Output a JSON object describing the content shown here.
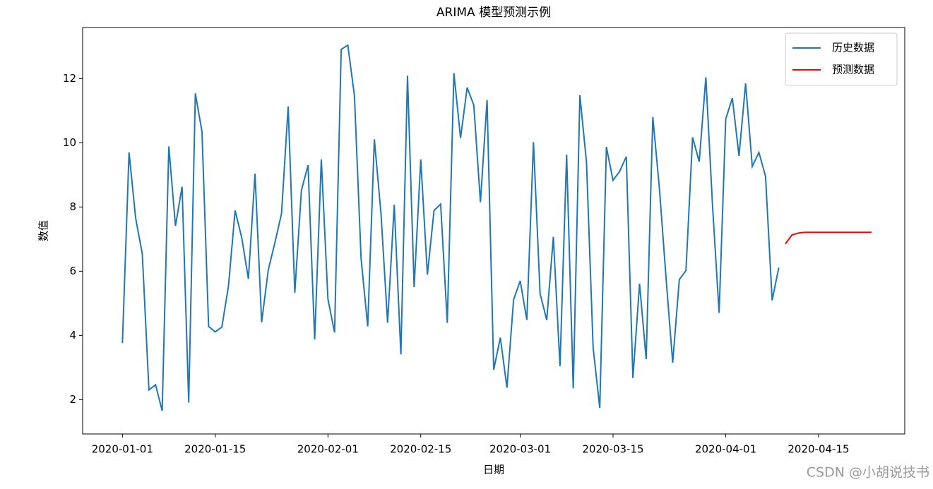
{
  "chart_data": {
    "type": "line",
    "title": "ARIMA 模型预测示例",
    "xlabel": "日期",
    "ylabel": "数值",
    "series": [
      {
        "name": "历史数据",
        "color": "#1f77b4",
        "x": [
          "2020-01-01",
          "2020-01-02",
          "2020-01-03",
          "2020-01-04",
          "2020-01-05",
          "2020-01-06",
          "2020-01-07",
          "2020-01-08",
          "2020-01-09",
          "2020-01-10",
          "2020-01-11",
          "2020-01-12",
          "2020-01-13",
          "2020-01-14",
          "2020-01-15",
          "2020-01-16",
          "2020-01-17",
          "2020-01-18",
          "2020-01-19",
          "2020-01-20",
          "2020-01-21",
          "2020-01-22",
          "2020-01-23",
          "2020-01-24",
          "2020-01-25",
          "2020-01-26",
          "2020-01-27",
          "2020-01-28",
          "2020-01-29",
          "2020-01-30",
          "2020-01-31",
          "2020-02-01",
          "2020-02-02",
          "2020-02-03",
          "2020-02-04",
          "2020-02-05",
          "2020-02-06",
          "2020-02-07",
          "2020-02-08",
          "2020-02-09",
          "2020-02-10",
          "2020-02-11",
          "2020-02-12",
          "2020-02-13",
          "2020-02-14",
          "2020-02-15",
          "2020-02-16",
          "2020-02-17",
          "2020-02-18",
          "2020-02-19",
          "2020-02-20",
          "2020-02-21",
          "2020-02-22",
          "2020-02-23",
          "2020-02-24",
          "2020-02-25",
          "2020-02-26",
          "2020-02-27",
          "2020-02-28",
          "2020-02-29",
          "2020-03-01",
          "2020-03-02",
          "2020-03-03",
          "2020-03-04",
          "2020-03-05",
          "2020-03-06",
          "2020-03-07",
          "2020-03-08",
          "2020-03-09",
          "2020-03-10",
          "2020-03-11",
          "2020-03-12",
          "2020-03-13",
          "2020-03-14",
          "2020-03-15",
          "2020-03-16",
          "2020-03-17",
          "2020-03-18",
          "2020-03-19",
          "2020-03-20",
          "2020-03-21",
          "2020-03-22",
          "2020-03-23",
          "2020-03-24",
          "2020-03-25",
          "2020-03-26",
          "2020-03-27",
          "2020-03-28",
          "2020-03-29",
          "2020-03-30",
          "2020-03-31",
          "2020-04-01",
          "2020-04-02",
          "2020-04-03",
          "2020-04-04",
          "2020-04-05",
          "2020-04-06",
          "2020-04-07",
          "2020-04-08",
          "2020-04-09"
        ],
        "values": [
          3.76,
          9.7,
          7.65,
          6.54,
          2.3,
          2.46,
          1.65,
          9.89,
          7.41,
          8.63,
          1.91,
          11.54,
          10.35,
          4.28,
          4.11,
          4.26,
          5.54,
          7.89,
          7.04,
          5.76,
          9.04,
          4.41,
          6.04,
          6.89,
          7.8,
          11.13,
          5.33,
          8.52,
          9.3,
          3.87,
          9.48,
          5.13,
          4.09,
          12.91,
          13.04,
          11.46,
          6.39,
          4.28,
          10.11,
          7.8,
          4.39,
          8.07,
          3.41,
          12.09,
          5.5,
          9.48,
          5.89,
          7.89,
          8.09,
          4.39,
          12.17,
          10.15,
          11.72,
          11.17,
          8.15,
          11.33,
          2.93,
          3.93,
          2.37,
          5.11,
          5.7,
          4.48,
          10.02,
          5.3,
          4.48,
          7.07,
          3.04,
          9.63,
          2.35,
          11.48,
          9.39,
          3.61,
          1.74,
          9.87,
          8.83,
          9.11,
          9.57,
          2.67,
          5.61,
          3.26,
          10.8,
          8.57,
          5.78,
          3.15,
          5.74,
          6.02,
          10.17,
          9.41,
          12.04,
          8.07,
          4.7,
          10.74,
          11.39,
          9.59,
          11.85,
          9.26,
          9.7,
          8.96,
          5.09,
          6.11
        ]
      },
      {
        "name": "预测数据",
        "color": "#ff0000",
        "x": [
          "2020-04-10",
          "2020-04-11",
          "2020-04-12",
          "2020-04-13",
          "2020-04-14",
          "2020-04-15",
          "2020-04-16",
          "2020-04-17",
          "2020-04-18",
          "2020-04-19",
          "2020-04-20",
          "2020-04-21",
          "2020-04-22",
          "2020-04-23"
        ],
        "values": [
          6.85,
          7.13,
          7.19,
          7.21,
          7.21,
          7.21,
          7.21,
          7.21,
          7.21,
          7.21,
          7.21,
          7.21,
          7.21,
          7.21
        ]
      }
    ],
    "xlim": [
      "2019-12-26",
      "2020-04-28"
    ],
    "xticks": [
      "2020-01-01",
      "2020-01-15",
      "2020-02-01",
      "2020-02-15",
      "2020-03-01",
      "2020-03-15",
      "2020-04-01",
      "2020-04-15"
    ],
    "ylim": [
      0.93,
      13.59
    ],
    "yticks": [
      2,
      4,
      6,
      8,
      10,
      12
    ],
    "legend": "upper right",
    "grid": false
  },
  "watermark": "CSDN @小胡说技书"
}
